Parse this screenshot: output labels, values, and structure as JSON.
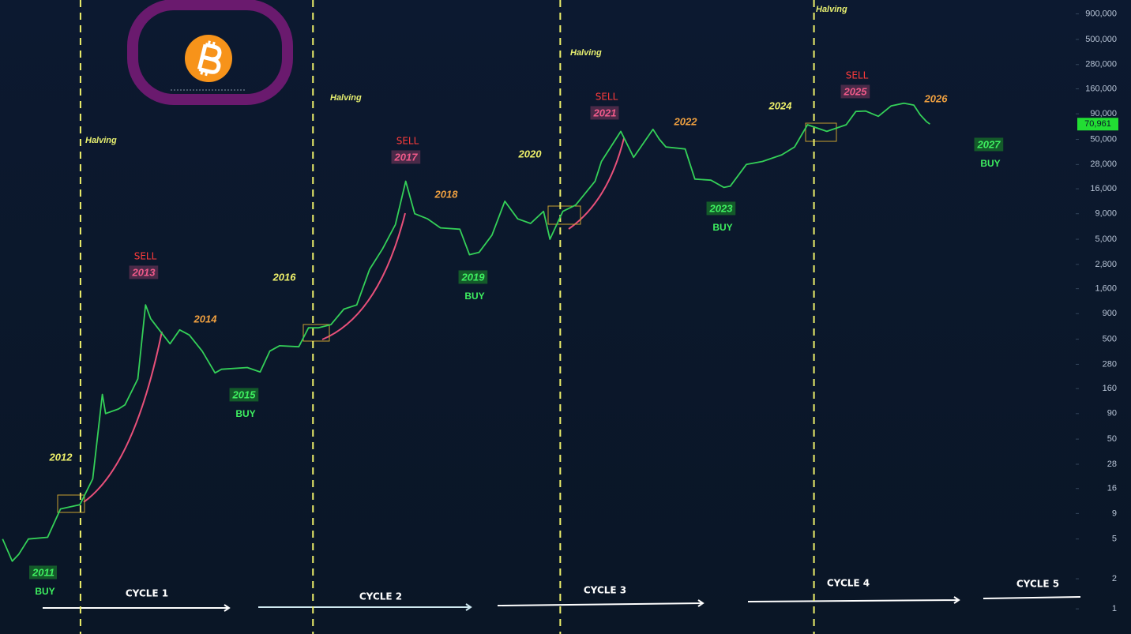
{
  "chart_data": {
    "type": "line",
    "x": [
      2011.7,
      2011.85,
      2011.95,
      2012.1,
      2012.4,
      2012.6,
      2012.9,
      2013.1,
      2013.25,
      2013.3,
      2013.5,
      2013.6,
      2013.8,
      2013.92,
      2014.0,
      2014.15,
      2014.3,
      2014.45,
      2014.6,
      2014.8,
      2015.0,
      2015.1,
      2015.5,
      2015.7,
      2015.85,
      2016.0,
      2016.3,
      2016.45,
      2016.6,
      2016.8,
      2017.0,
      2017.2,
      2017.4,
      2017.6,
      2017.8,
      2017.96,
      2018.1,
      2018.3,
      2018.5,
      2018.8,
      2018.95,
      2019.1,
      2019.3,
      2019.5,
      2019.7,
      2019.9,
      2020.1,
      2020.2,
      2020.4,
      2020.6,
      2020.9,
      2021.0,
      2021.3,
      2021.5,
      2021.8,
      2021.9,
      2022.0,
      2022.3,
      2022.45,
      2022.7,
      2022.9,
      2023.0,
      2023.25,
      2023.5,
      2023.8,
      2024.0,
      2024.2,
      2024.5,
      2024.8,
      2024.95,
      2025.1,
      2025.3,
      2025.5,
      2025.7,
      2025.85,
      2025.95,
      2026.05,
      2026.1
    ],
    "values": [
      5,
      3,
      3.5,
      5,
      5.2,
      10,
      11,
      20,
      140,
      90,
      100,
      110,
      200,
      1100,
      800,
      600,
      450,
      620,
      550,
      380,
      230,
      250,
      260,
      235,
      380,
      430,
      420,
      650,
      650,
      700,
      1000,
      1100,
      2500,
      4000,
      7000,
      19000,
      9000,
      8000,
      6500,
      6300,
      3500,
      3700,
      5500,
      12000,
      8000,
      7200,
      9500,
      5000,
      9500,
      11000,
      19000,
      30000,
      60000,
      33000,
      63000,
      50000,
      42000,
      40000,
      20000,
      19500,
      16500,
      17000,
      28000,
      30000,
      35000,
      42000,
      70000,
      60000,
      70000,
      95000,
      96000,
      85000,
      108000,
      115000,
      110000,
      88000,
      75000,
      70961
    ],
    "color": "#34d058",
    "log_scale": true,
    "xlim": [
      2011.66,
      2028.34
    ],
    "ylim": [
      0.56,
      1240000
    ],
    "yticks": [
      {
        "value": 900000,
        "label": "900,000"
      },
      {
        "value": 500000,
        "label": "500,000"
      },
      {
        "value": 280000,
        "label": "280,000"
      },
      {
        "value": 160000,
        "label": "160,000"
      },
      {
        "value": 90000,
        "label": "90,000"
      },
      {
        "value": 50000,
        "label": "50,000"
      },
      {
        "value": 28000,
        "label": "28,000"
      },
      {
        "value": 16000,
        "label": "16,000"
      },
      {
        "value": 9000,
        "label": "9,000"
      },
      {
        "value": 5000,
        "label": "5,000"
      },
      {
        "value": 2800,
        "label": "2,800"
      },
      {
        "value": 1600,
        "label": "1,600"
      },
      900,
      500,
      280,
      160,
      90,
      50,
      28,
      16,
      9,
      5,
      2,
      1
    ],
    "last_price": {
      "value": 70961,
      "label": "70,961"
    },
    "halvings": {
      "label": "Halving",
      "x": [
        2012.91,
        2016.52,
        2020.36,
        2024.3
      ]
    },
    "halving_years": [
      "2012",
      "2016",
      "2020",
      "2024"
    ],
    "post_peak_years": [
      "2014",
      "2018",
      "2022",
      "2026"
    ],
    "sell": {
      "label": "SELL",
      "years": [
        "2013",
        "2017",
        "2021",
        "2025"
      ]
    },
    "buy": {
      "label": "BUY",
      "years": [
        "2011",
        "2015",
        "2019",
        "2023",
        "2027"
      ]
    },
    "cycles": [
      "CYCLE 1",
      "CYCLE 2",
      "CYCLE 3",
      "CYCLE 4",
      "CYCLE 5"
    ]
  }
}
